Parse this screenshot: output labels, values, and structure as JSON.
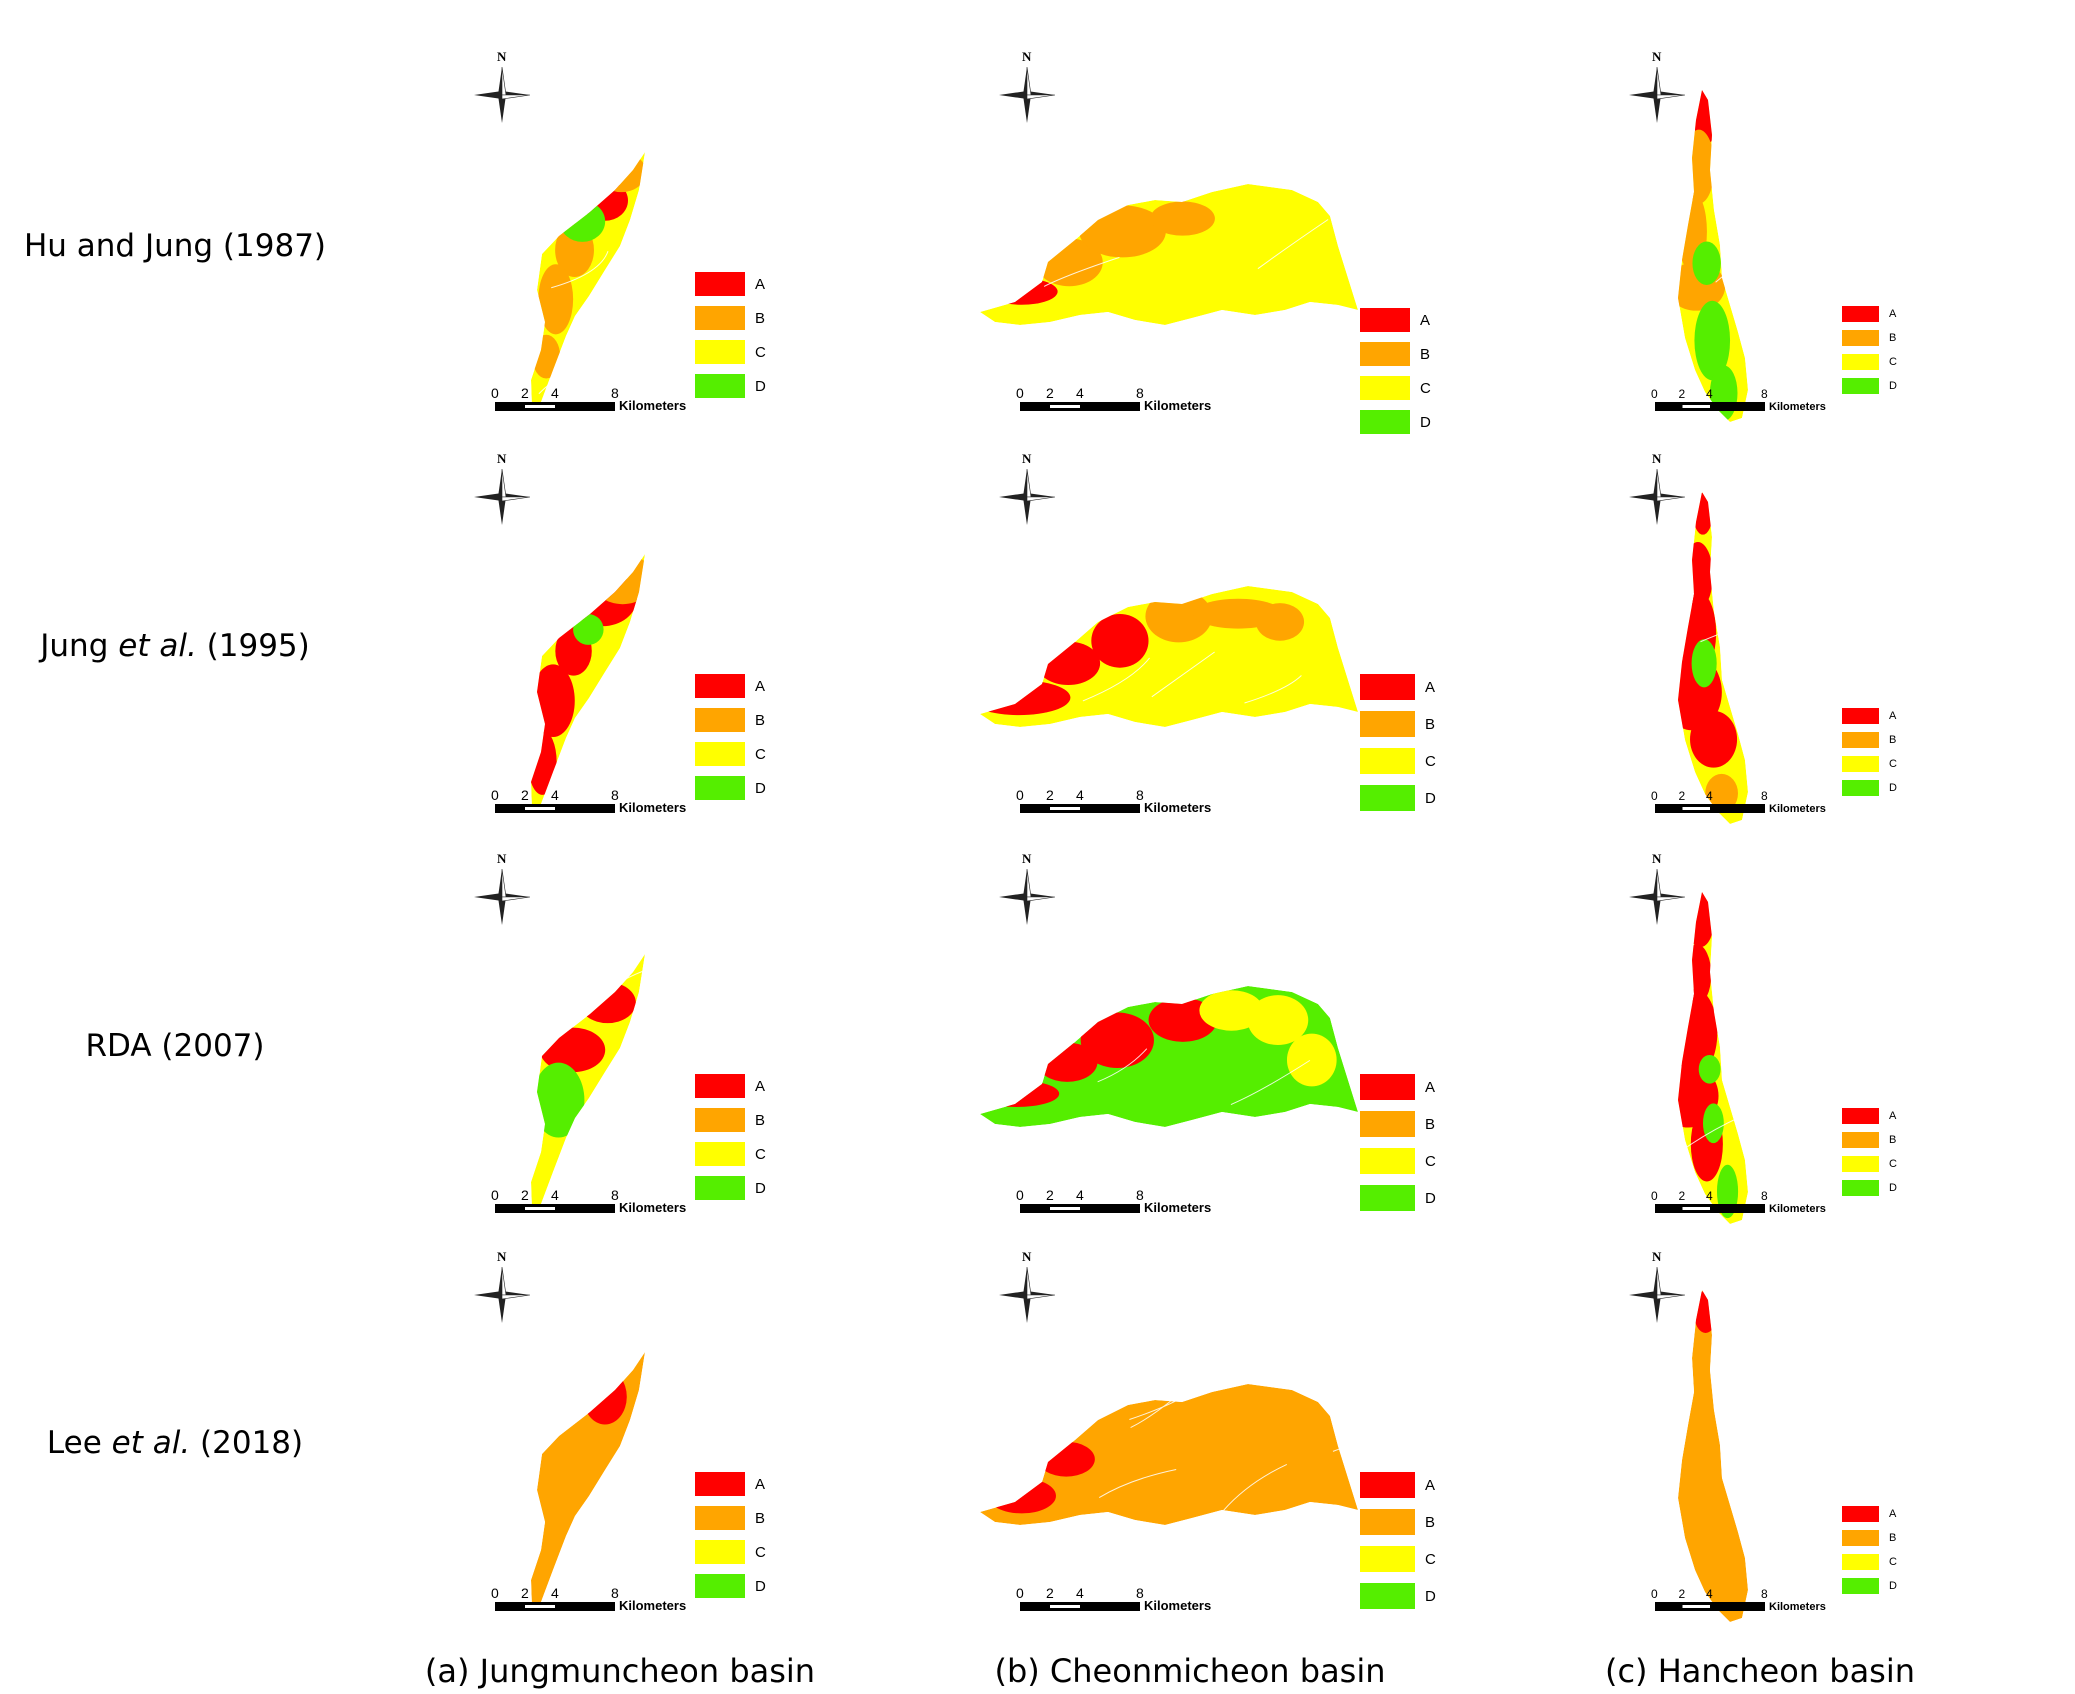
{
  "rows": [
    {
      "label_pre": "Hu and Jung (1987)",
      "label_em": "",
      "label_post": ""
    },
    {
      "label_pre": "Jung ",
      "label_em": "et al.",
      "label_post": " (1995)"
    },
    {
      "label_pre": "RDA (2007)",
      "label_em": "",
      "label_post": ""
    },
    {
      "label_pre": "Lee ",
      "label_em": "et al.",
      "label_post": " (2018)"
    }
  ],
  "columns": [
    {
      "caption": "(a) Jungmuncheon basin"
    },
    {
      "caption": "(b) Cheonmicheon basin"
    },
    {
      "caption": "(c) Hancheon basin"
    }
  ],
  "compass": {
    "north_label": "N"
  },
  "legend": {
    "items": [
      {
        "label": "A",
        "color": "#ff0000"
      },
      {
        "label": "B",
        "color": "#ffa500"
      },
      {
        "label": "C",
        "color": "#ffff00"
      },
      {
        "label": "D",
        "color": "#55ee00"
      }
    ]
  },
  "scale_bar": {
    "ticks": [
      "0",
      "2",
      "4",
      "8"
    ],
    "unit": "Kilometers"
  },
  "panels": [
    {
      "row": 0,
      "col": 0,
      "mix": {
        "A": 0.01,
        "B": 0.3,
        "C": 0.63,
        "D": 0.06
      }
    },
    {
      "row": 0,
      "col": 1,
      "mix": {
        "A": 0.03,
        "B": 0.22,
        "C": 0.75,
        "D": 0.0
      }
    },
    {
      "row": 0,
      "col": 2,
      "mix": {
        "A": 0.03,
        "B": 0.25,
        "C": 0.52,
        "D": 0.2
      }
    },
    {
      "row": 1,
      "col": 0,
      "mix": {
        "A": 0.3,
        "B": 0.1,
        "C": 0.58,
        "D": 0.02
      }
    },
    {
      "row": 1,
      "col": 1,
      "mix": {
        "A": 0.22,
        "B": 0.18,
        "C": 0.6,
        "D": 0.0
      }
    },
    {
      "row": 1,
      "col": 2,
      "mix": {
        "A": 0.35,
        "B": 0.05,
        "C": 0.57,
        "D": 0.03
      }
    },
    {
      "row": 2,
      "col": 0,
      "mix": {
        "A": 0.15,
        "B": 0.0,
        "C": 0.82,
        "D": 0.03
      }
    },
    {
      "row": 2,
      "col": 1,
      "mix": {
        "A": 0.28,
        "B": 0.0,
        "C": 0.17,
        "D": 0.55
      }
    },
    {
      "row": 2,
      "col": 2,
      "mix": {
        "A": 0.35,
        "B": 0.0,
        "C": 0.45,
        "D": 0.2
      }
    },
    {
      "row": 3,
      "col": 0,
      "mix": {
        "A": 0.1,
        "B": 0.9,
        "C": 0.0,
        "D": 0.0
      }
    },
    {
      "row": 3,
      "col": 1,
      "mix": {
        "A": 0.15,
        "B": 0.85,
        "C": 0.0,
        "D": 0.0
      }
    },
    {
      "row": 3,
      "col": 2,
      "mix": {
        "A": 0.08,
        "B": 0.92,
        "C": 0.0,
        "D": 0.0
      }
    }
  ]
}
